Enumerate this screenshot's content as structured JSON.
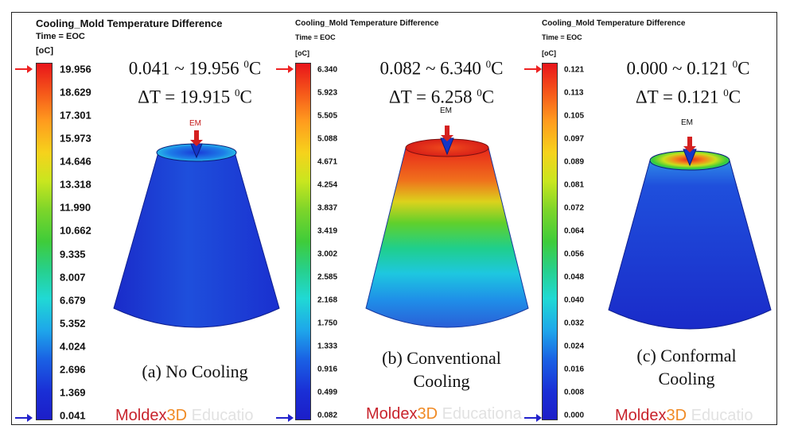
{
  "panels": [
    {
      "title": "Cooling_Mold Temperature Difference",
      "time": "Time = EOC",
      "unit": "[oC]",
      "ticks": [
        "19.956",
        "18.629",
        "17.301",
        "15.973",
        "14.646",
        "13.318",
        "11.990",
        "10.662",
        "9.335",
        "8.007",
        "6.679",
        "5.352",
        "4.024",
        "2.696",
        "1.369",
        "0.041"
      ],
      "range_line": "0.041 ~ 19.956",
      "range_unit": "0C",
      "delta_line": "ΔT = 19.915",
      "delta_unit": "0C",
      "caption": "(a) No Cooling",
      "em_label": "EM",
      "brand_a": "Moldex",
      "brand_b": "3D",
      "brand_c": "Educatio"
    },
    {
      "title": "Cooling_Mold Temperature Difference",
      "time": "Time = EOC",
      "unit": "[oC]",
      "ticks": [
        "6.340",
        "5.923",
        "5.505",
        "5.088",
        "4.671",
        "4.254",
        "3.837",
        "3.419",
        "3.002",
        "2.585",
        "2.168",
        "1.750",
        "1.333",
        "0.916",
        "0.499",
        "0.082"
      ],
      "range_line": "0.082 ~ 6.340",
      "range_unit": "0C",
      "delta_line": "ΔT = 6.258",
      "delta_unit": "0C",
      "caption": "(b) Conventional Cooling",
      "em_label": "EM",
      "brand_a": "Moldex",
      "brand_b": "3D",
      "brand_c": "Educationa"
    },
    {
      "title": "Cooling_Mold Temperature Difference",
      "time": "Time = EOC",
      "unit": "[oC]",
      "ticks": [
        "0.121",
        "0.113",
        "0.105",
        "0.097",
        "0.089",
        "0.081",
        "0.072",
        "0.064",
        "0.056",
        "0.048",
        "0.040",
        "0.032",
        "0.024",
        "0.016",
        "0.008",
        "0.000"
      ],
      "range_line": "0.000 ~ 0.121",
      "range_unit": "0C",
      "delta_line": "ΔT = 0.121",
      "delta_unit": "0C",
      "caption": "(c) Conformal Cooling",
      "em_label": "EM",
      "brand_a": "Moldex",
      "brand_b": "3D",
      "brand_c": "Educatio"
    }
  ]
}
